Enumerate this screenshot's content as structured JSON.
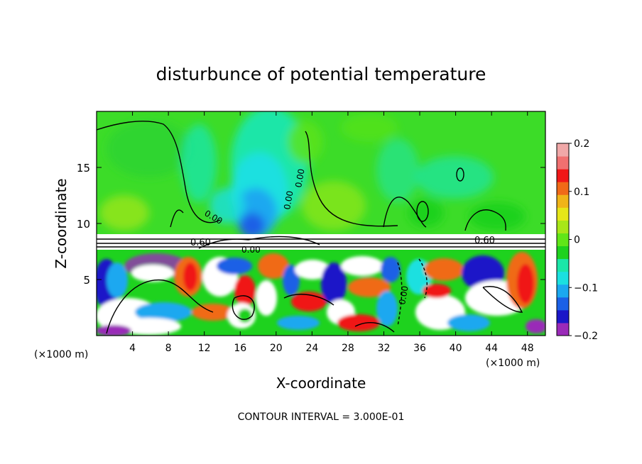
{
  "chart_data": {
    "type": "heatmap",
    "title": "disturbunce of potential temperature",
    "xlabel": "X-coordinate",
    "ylabel": "Z-coordinate",
    "x_unit": "(×1000 m)",
    "x_unit_right": "(×1000 m)",
    "footer": "CONTOUR INTERVAL = 3.000E-01",
    "xlim": [
      0,
      50
    ],
    "ylim": [
      0,
      20
    ],
    "x_ticks": [
      4,
      8,
      12,
      16,
      20,
      24,
      28,
      32,
      36,
      40,
      44,
      48
    ],
    "x_tick_labels": [
      "4",
      "8",
      "12",
      "16",
      "20",
      "24",
      "28",
      "32",
      "36",
      "40",
      "44",
      "48"
    ],
    "y_ticks": [
      5,
      10,
      15
    ],
    "y_tick_labels": [
      "5",
      "10",
      "15"
    ],
    "colorbar": {
      "range": [
        -0.2,
        0.2
      ],
      "ticks": [
        0.2,
        0.1,
        0,
        -0.1,
        -0.2
      ],
      "tick_labels": [
        "0.2",
        "0.1",
        "0",
        "−0.1",
        "−0.2"
      ],
      "colors": [
        "#9a2ab8",
        "#1a16c8",
        "#1a60e6",
        "#1aa8f0",
        "#1ae0e0",
        "#1ae6a8",
        "#1ed21e",
        "#60e618",
        "#a8e618",
        "#e6e618",
        "#f0b418",
        "#f06a18",
        "#f01818",
        "#f07070",
        "#f0a8a8"
      ]
    },
    "contour_labels": [
      "0.60",
      "0.60",
      "0.00",
      "0.00",
      "0.00",
      "0.00",
      "0.00"
    ],
    "inversion_height": 8.5
  }
}
